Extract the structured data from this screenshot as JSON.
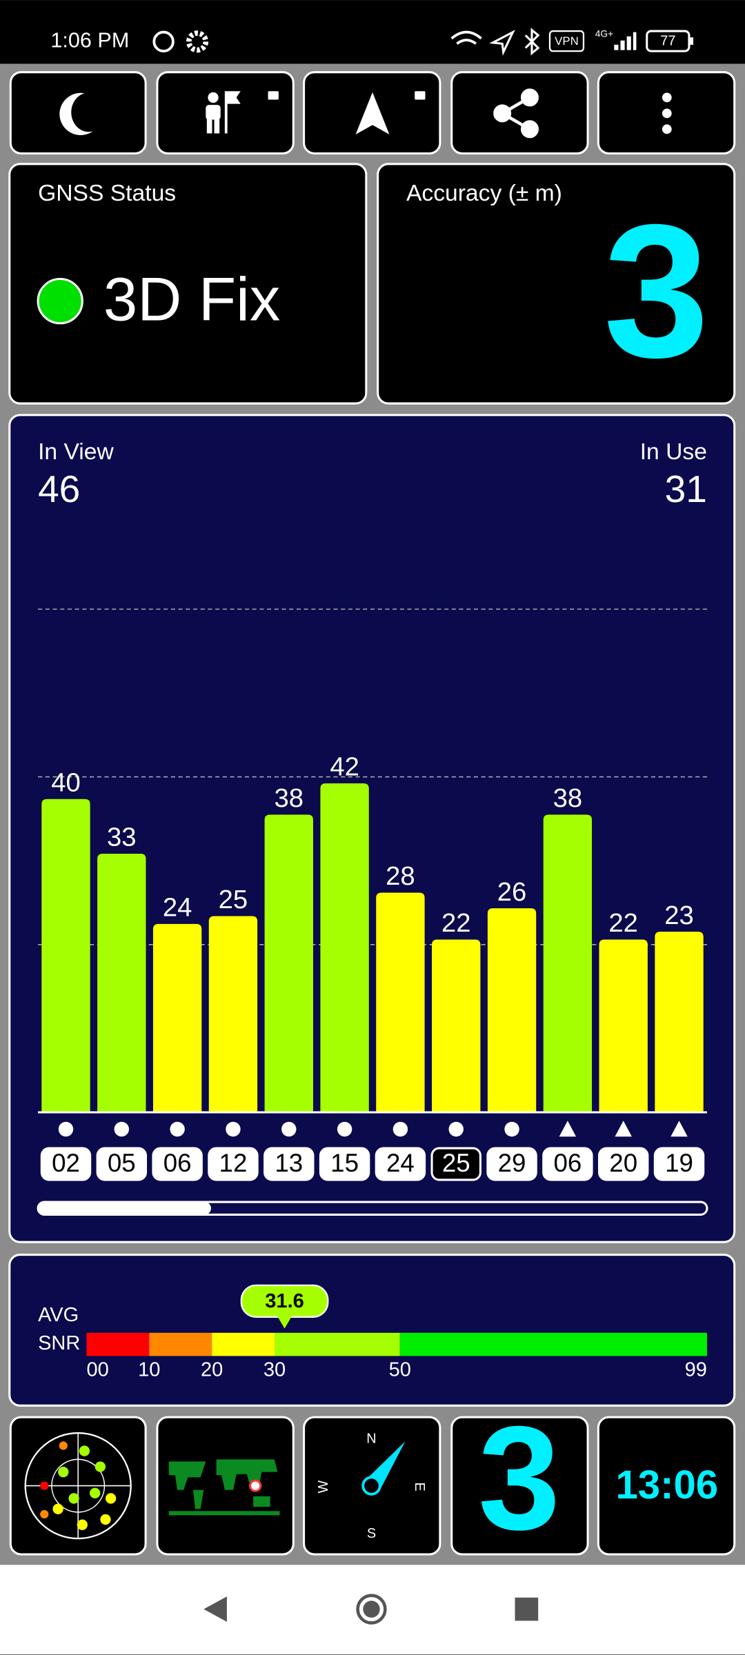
{
  "status_bar": {
    "time": "1:06 PM",
    "vpn": "VPN",
    "network": "4G+",
    "battery": "77"
  },
  "gnss_status": {
    "title": "GNSS Status",
    "value": "3D Fix"
  },
  "accuracy": {
    "title": "Accuracy (± m)",
    "value": "3"
  },
  "satellites": {
    "in_view_label": "In View",
    "in_view": 46,
    "in_use_label": "In Use",
    "in_use": 31,
    "chart_data": {
      "type": "bar",
      "categories": [
        "02",
        "05",
        "06",
        "12",
        "13",
        "15",
        "24",
        "25",
        "29",
        "06",
        "20",
        "19"
      ],
      "values": [
        40,
        33,
        24,
        25,
        38,
        42,
        28,
        22,
        26,
        38,
        22,
        23
      ],
      "colors": [
        "#a6ff00",
        "#a6ff00",
        "#ffff00",
        "#ffff00",
        "#a6ff00",
        "#a6ff00",
        "#ffff00",
        "#ffff00",
        "#ffff00",
        "#a6ff00",
        "#ffff00",
        "#ffff00"
      ],
      "used": [
        true,
        true,
        true,
        true,
        true,
        true,
        true,
        false,
        true,
        true,
        true,
        true
      ],
      "markers": [
        "circle",
        "circle",
        "circle",
        "circle",
        "circle",
        "circle",
        "circle",
        "circle",
        "circle",
        "triangle",
        "triangle",
        "triangle"
      ],
      "ylim": [
        0,
        70
      ]
    }
  },
  "snr": {
    "avg_label": "AVG",
    "snr_label": "SNR",
    "average": 31.6,
    "xlim": [
      0,
      99
    ],
    "xticks": [
      {
        "value": 0,
        "label": "00"
      },
      10,
      20,
      30,
      50,
      99
    ],
    "bands": [
      {
        "from": 0,
        "to": 10,
        "color": "#ff0000"
      },
      {
        "from": 10,
        "to": 20,
        "color": "#ff8800"
      },
      {
        "from": 20,
        "to": 30,
        "color": "#ffff00"
      },
      {
        "from": 30,
        "to": 50,
        "color": "#a6ff00"
      },
      {
        "from": 50,
        "to": 99,
        "color": "#00ee00"
      }
    ]
  },
  "compass": {
    "north": "N",
    "east": "E",
    "south": "S",
    "west": "W"
  },
  "clock": "13:06"
}
